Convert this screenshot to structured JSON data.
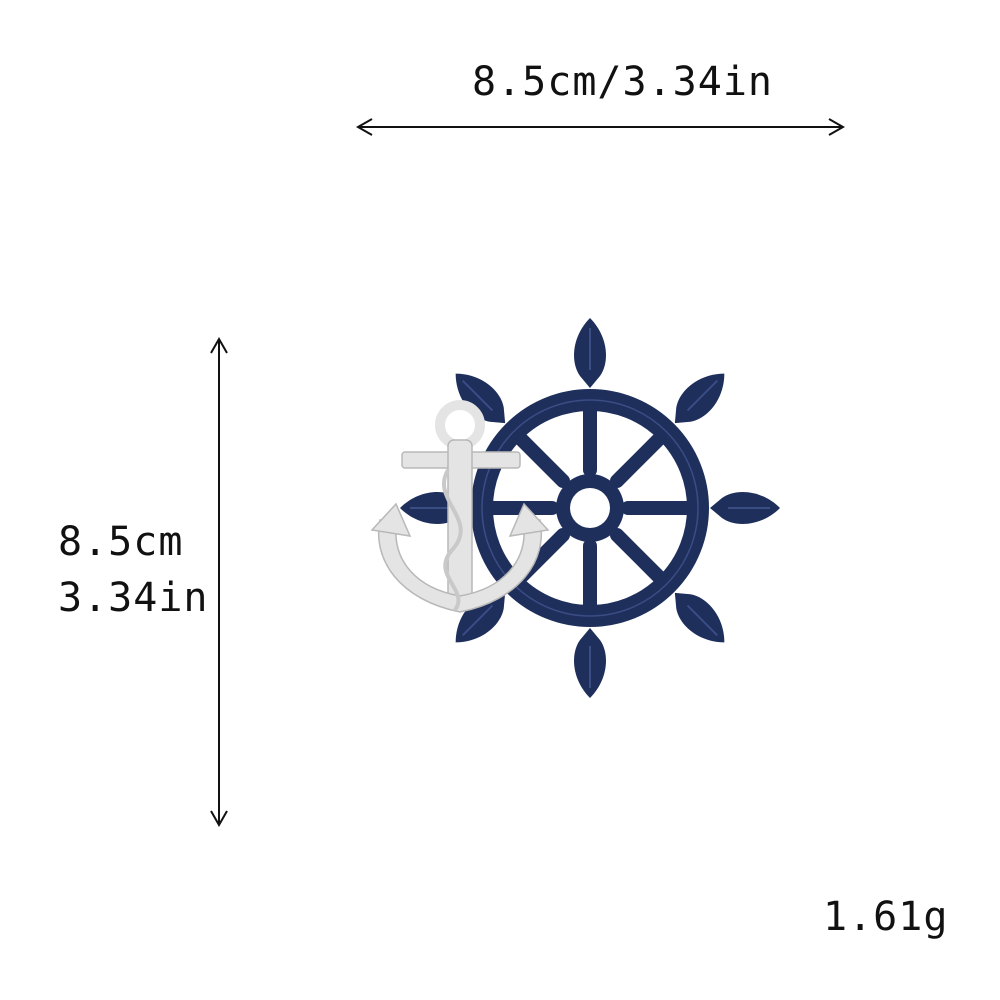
{
  "dimensions": {
    "width_label": "8.5cm/3.34in",
    "height_label_cm": "8.5cm",
    "height_label_in": "3.34in"
  },
  "weight": {
    "label": "1.61g"
  },
  "product": {
    "image_icon": "ship-wheel-anchor-patch-icon",
    "wheel_color": "#1f2f5c",
    "anchor_color": "#e4e4e4"
  },
  "colors": {
    "text": "#111111",
    "arrow": "#111111",
    "background": "#ffffff"
  }
}
